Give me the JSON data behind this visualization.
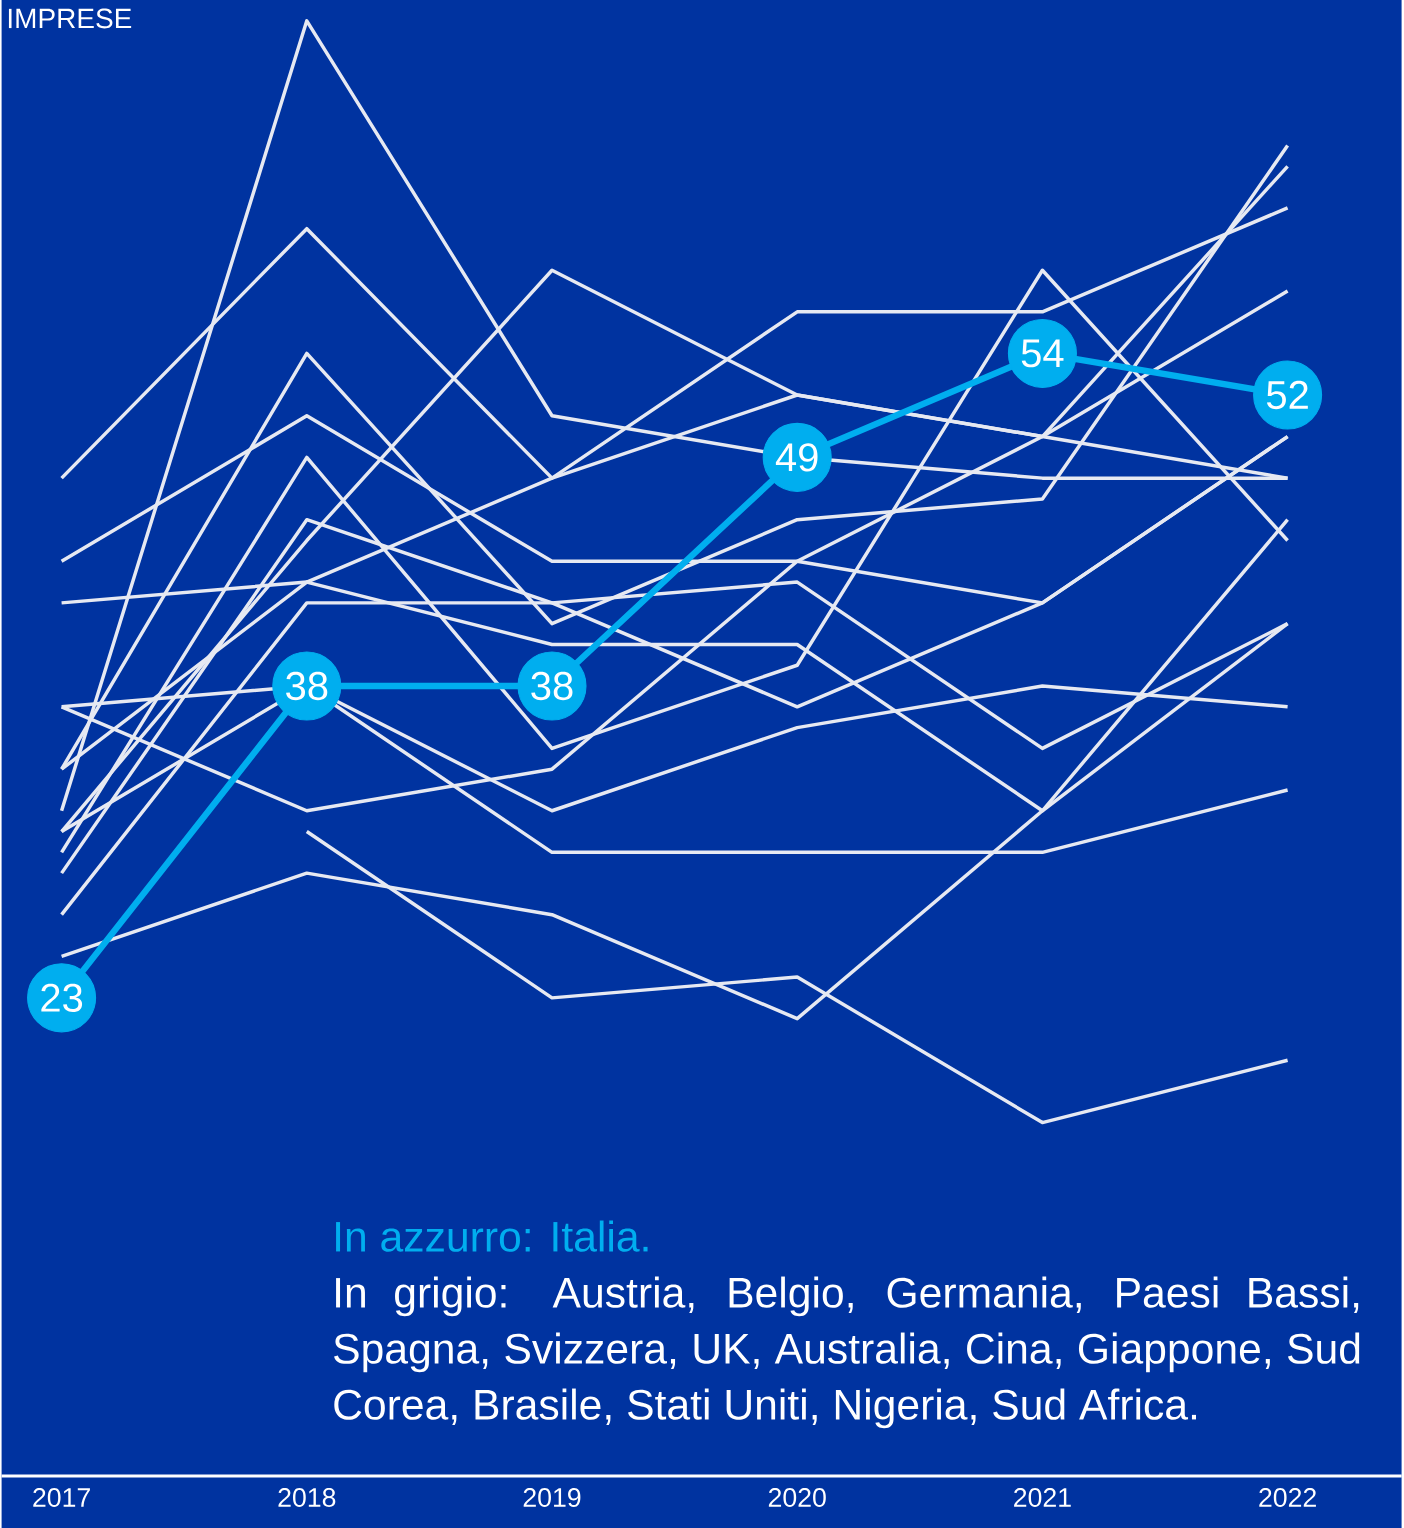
{
  "chart_data": {
    "type": "line",
    "title": "IMPRESE",
    "categories": [
      "2017",
      "2018",
      "2019",
      "2020",
      "2021",
      "2022"
    ],
    "ylim": [
      0,
      71
    ],
    "tick_labels": "x",
    "marker": "none",
    "line_style": "solid",
    "annotations": [
      "In azzurro: Italia.",
      "In grigio: Austria, Belgio, Germania, Paesi Bassi, Spagna, Svizzera, UK, Australia, Cina, Giappone, Sud Corea, Brasile, Stati Uniti, Nigeria, Sud Africa."
    ],
    "series": [
      {
        "color": "#e6e9f2",
        "values": [
          32,
          70,
          51,
          49,
          48,
          48
        ]
      },
      {
        "color": "#e6e9f2",
        "values": [
          48,
          60,
          48,
          56,
          56,
          61
        ]
      },
      {
        "color": "#e6e9f2",
        "values": [
          42,
          43,
          48,
          52,
          50,
          57
        ]
      },
      {
        "color": "#e6e9f2",
        "values": [
          44,
          51,
          44,
          44,
          42,
          50
        ]
      },
      {
        "color": "#e6e9f2",
        "values": [
          34,
          54,
          41,
          46,
          47,
          64
        ]
      },
      {
        "color": "#e6e9f2",
        "values": [
          31,
          45,
          58,
          52,
          50,
          48
        ]
      },
      {
        "color": "#e6e9f2",
        "values": [
          30,
          49,
          35,
          39,
          58,
          45
        ]
      },
      {
        "color": "#e6e9f2",
        "values": [
          29,
          46,
          42,
          43,
          35,
          41
        ]
      },
      {
        "color": "#e6e9f2",
        "values": [
          27,
          42,
          42,
          37,
          42,
          50
        ]
      },
      {
        "color": "#e6e9f2",
        "values": [
          37,
          32,
          34,
          44,
          50,
          63
        ]
      },
      {
        "color": "#e6e9f2",
        "values": [
          25,
          29,
          27,
          22,
          32,
          46
        ]
      },
      {
        "color": "#e6e9f2",
        "values": [
          null,
          31,
          23,
          24,
          17,
          20
        ]
      },
      {
        "color": "#e6e9f2",
        "values": [
          31,
          38,
          30,
          30,
          30,
          33
        ]
      },
      {
        "color": "#e6e9f2",
        "values": [
          37,
          38,
          32,
          36,
          38,
          37
        ]
      },
      {
        "color": "#e6e9f2",
        "values": [
          34,
          43,
          40,
          40,
          32,
          41
        ]
      },
      {
        "color": "#00aeef",
        "values": [
          23,
          38,
          38,
          49,
          54,
          52
        ],
        "marker": "circle",
        "value_labels": [
          "23",
          "38",
          "38",
          "49",
          "54",
          "52"
        ]
      }
    ]
  }
}
